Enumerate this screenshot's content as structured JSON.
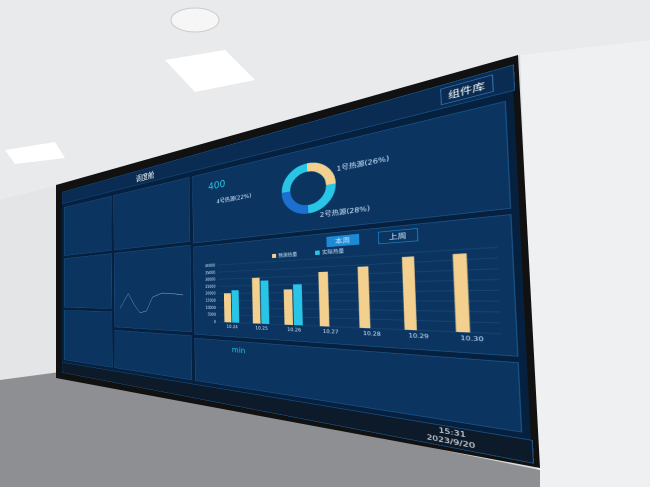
{
  "screen": {
    "title": "调度舱",
    "button": "组件库",
    "donut": {
      "center_value": "400",
      "labels": [
        "1号热源(26%)",
        "4号热源(22%)",
        "2号热源(28%)"
      ]
    },
    "tabs": [
      "本周",
      "上周"
    ],
    "bar_chart": {
      "type": "bar",
      "categories": [
        "10.24",
        "10.25",
        "10.26",
        "10.27",
        "10.28",
        "10.29",
        "10.30"
      ],
      "series": [
        {
          "name": "预测热量",
          "color": "#f3d08e",
          "values": [
            20000,
            30000,
            22000,
            32000,
            34000,
            38000,
            38000
          ]
        },
        {
          "name": "实际热量",
          "color": "#29c5e6",
          "values": [
            22000,
            28000,
            25000,
            null,
            null,
            null,
            null
          ]
        }
      ],
      "ylim": [
        0,
        40000
      ],
      "yticks": [
        0,
        5000,
        10000,
        15000,
        20000,
        25000,
        30000,
        35000,
        40000
      ]
    },
    "bottom": {
      "unit": "min"
    },
    "taskbar": {
      "time": "15:31",
      "date": "2023/9/20"
    }
  }
}
